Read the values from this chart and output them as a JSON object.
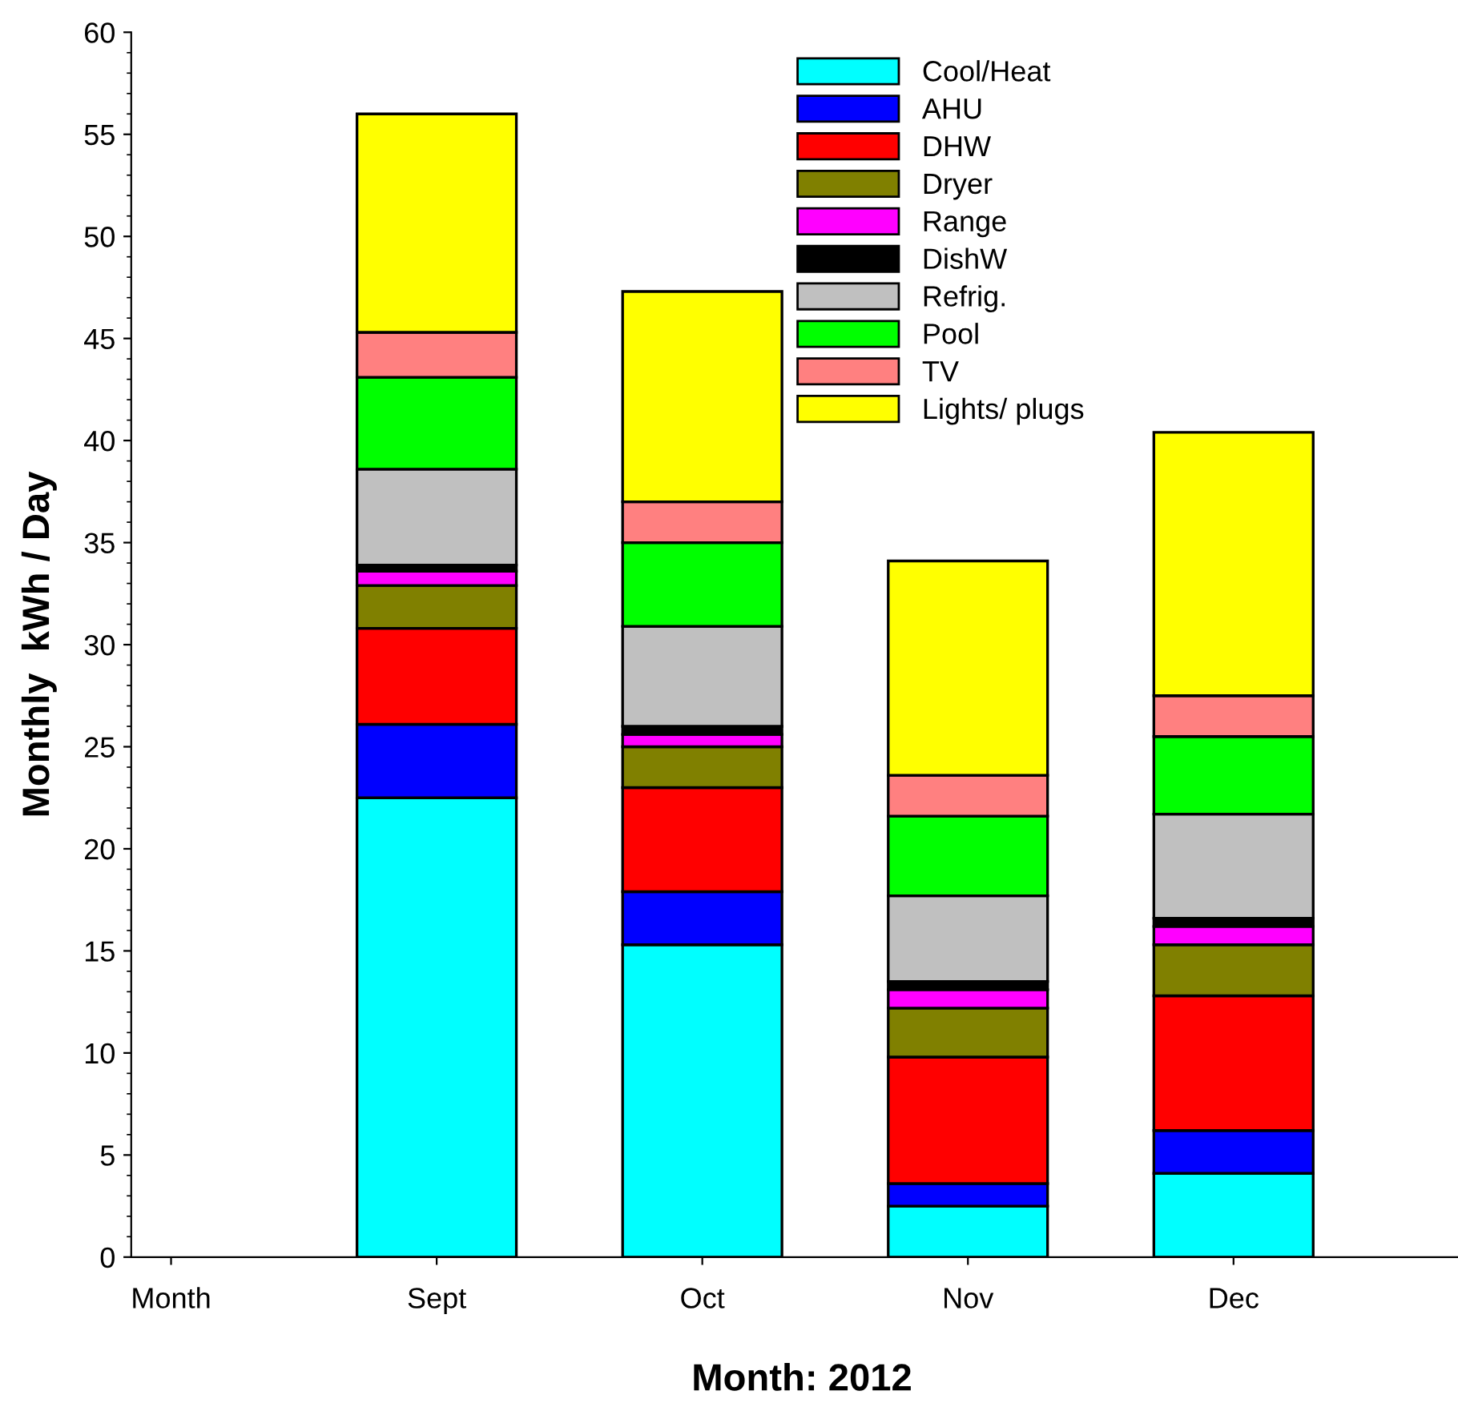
{
  "chart_data": {
    "type": "bar",
    "stacked": true,
    "xlabel": "Month: 2012",
    "ylabel": "Monthly  kWh / Day",
    "categories": [
      "Month",
      "Sept",
      "Oct",
      "Nov",
      "Dec"
    ],
    "ylim": [
      0,
      60
    ],
    "yticks": [
      0,
      5,
      10,
      15,
      20,
      25,
      30,
      35,
      40,
      45,
      50,
      55,
      60
    ],
    "grid": false,
    "legend": "top right",
    "series": [
      {
        "name": "Cool/Heat",
        "color": "#00ffff",
        "values": [
          null,
          22.5,
          15.3,
          2.5,
          4.1
        ]
      },
      {
        "name": "AHU",
        "color": "#0000ff",
        "values": [
          null,
          3.6,
          2.6,
          1.1,
          2.1
        ]
      },
      {
        "name": "DHW",
        "color": "#ff0000",
        "values": [
          null,
          4.7,
          5.1,
          6.2,
          6.6
        ]
      },
      {
        "name": "Dryer",
        "color": "#808000",
        "values": [
          null,
          2.1,
          2.0,
          2.4,
          2.5
        ]
      },
      {
        "name": "Range",
        "color": "#ff00ff",
        "values": [
          null,
          0.7,
          0.6,
          0.9,
          0.9
        ]
      },
      {
        "name": "DishW",
        "color": "#000000",
        "values": [
          null,
          0.3,
          0.4,
          0.4,
          0.4
        ]
      },
      {
        "name": "Refrig.",
        "color": "#c0c0c0",
        "values": [
          null,
          4.7,
          4.9,
          4.2,
          5.1
        ]
      },
      {
        "name": "Pool",
        "color": "#00ff00",
        "values": [
          null,
          4.5,
          4.1,
          3.9,
          3.8
        ]
      },
      {
        "name": "TV",
        "color": "#ff8080",
        "values": [
          null,
          2.2,
          2.0,
          2.0,
          2.0
        ]
      },
      {
        "name": "Lights/ plugs",
        "color": "#ffff00",
        "values": [
          null,
          10.7,
          10.3,
          10.5,
          12.9
        ]
      }
    ]
  }
}
